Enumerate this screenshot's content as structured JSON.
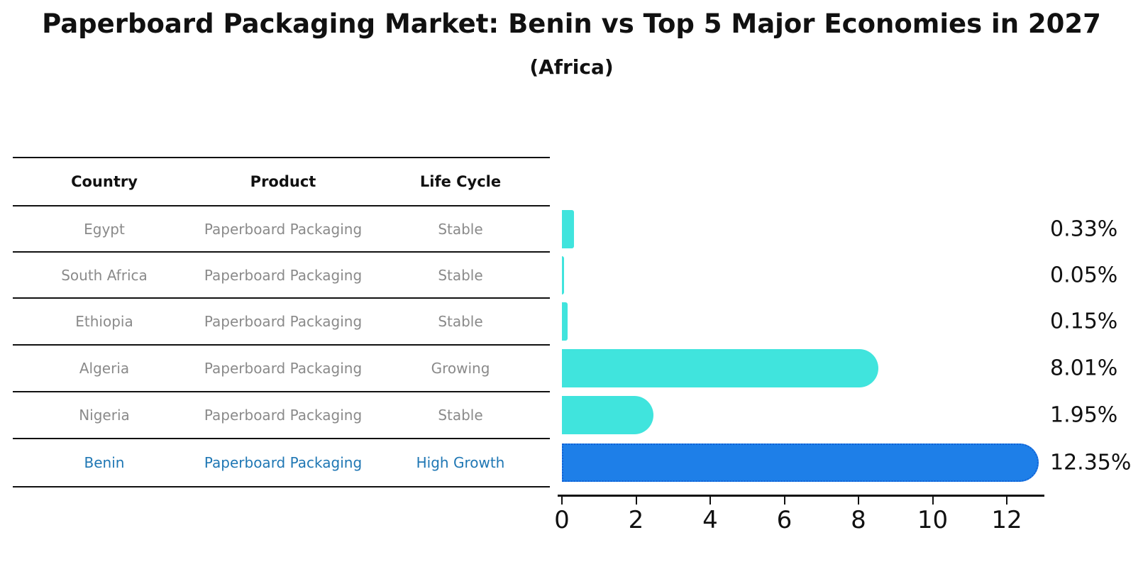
{
  "title": "Paperboard Packaging Market: Benin vs Top 5 Major Economies in 2027",
  "subtitle": "(Africa)",
  "table": {
    "headers": [
      "Country",
      "Product",
      "Life Cycle"
    ],
    "rows": [
      {
        "country": "Egypt",
        "product": "Paperboard Packaging",
        "life_cycle": "Stable",
        "highlight": false
      },
      {
        "country": "South Africa",
        "product": "Paperboard Packaging",
        "life_cycle": "Stable",
        "highlight": false
      },
      {
        "country": "Ethiopia",
        "product": "Paperboard Packaging",
        "life_cycle": "Stable",
        "highlight": false
      },
      {
        "country": "Algeria",
        "product": "Paperboard Packaging",
        "life_cycle": "Growing",
        "highlight": false
      },
      {
        "country": "Nigeria",
        "product": "Paperboard Packaging",
        "life_cycle": "Stable",
        "highlight": false
      },
      {
        "country": "Benin",
        "product": "Paperboard Packaging",
        "life_cycle": "High Growth",
        "highlight": true
      }
    ]
  },
  "chart_data": {
    "type": "bar",
    "orientation": "horizontal",
    "title": "Paperboard Packaging Market: Benin vs Top 5 Major Economies in 2027",
    "subtitle": "(Africa)",
    "categories": [
      "Egypt",
      "South Africa",
      "Ethiopia",
      "Algeria",
      "Nigeria",
      "Benin"
    ],
    "values": [
      0.33,
      0.05,
      0.15,
      8.01,
      1.95,
      12.35
    ],
    "value_labels": [
      "0.33%",
      "0.05%",
      "0.15%",
      "8.01%",
      "1.95%",
      "12.35%"
    ],
    "x_ticks": [
      0,
      2,
      4,
      6,
      8,
      10,
      12
    ],
    "xlim": [
      0,
      13.0
    ],
    "grid": false,
    "legend": "none",
    "value_label_position": "right-of-plot",
    "highlight_index": 5,
    "bar_color": "#40e4dd",
    "highlight_bar_color": "#1e7fe8",
    "highlight_border_color": "#1161d6",
    "highlight_text_color": "#1f77b4",
    "row_text_color": "#8a8a8a",
    "axis_text_color": "#111111"
  }
}
